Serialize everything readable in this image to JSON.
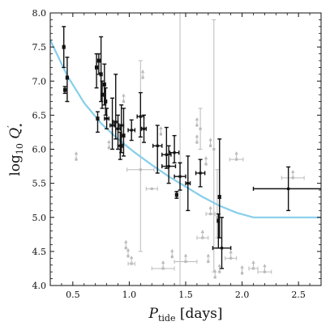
{
  "chart_data": {
    "type": "scatter",
    "xlim": [
      0.3,
      2.7
    ],
    "ylim": [
      4.0,
      8.0
    ],
    "x_ticks": [
      0.5,
      1.0,
      1.5,
      2.0,
      2.5
    ],
    "x_tick_labels": [
      "0.5",
      "1.0",
      "1.5",
      "2.0",
      "2.5"
    ],
    "y_ticks": [
      4.0,
      4.5,
      5.0,
      5.5,
      6.0,
      6.5,
      7.0,
      7.5,
      8.0
    ],
    "y_tick_labels": [
      "4.0",
      "4.5",
      "5.0",
      "5.5",
      "6.0",
      "6.5",
      "7.0",
      "7.5",
      "8.0"
    ],
    "xlabel": {
      "main": "P",
      "sub": "tide",
      "unit": " [days]"
    },
    "ylabel": {
      "prefix": "log",
      "base": "10",
      "var": " Q",
      "prime": "′",
      "star": "⋆"
    },
    "grid": false,
    "colors": {
      "measured": "#111111",
      "limits": "#bbbbbb",
      "model": "#87ceeb"
    },
    "model_curve": {
      "x": [
        0.3,
        0.45,
        0.6,
        0.75,
        0.9,
        1.05,
        1.2,
        1.35,
        1.5,
        1.65,
        1.8,
        1.95,
        2.1,
        2.3,
        2.7
      ],
      "y": [
        7.6,
        7.08,
        6.68,
        6.38,
        6.15,
        5.95,
        5.77,
        5.6,
        5.45,
        5.3,
        5.17,
        5.07,
        5.0,
        5.0,
        5.0
      ]
    },
    "measured": [
      {
        "x": 0.43,
        "y": 6.87,
        "xerr": 0.01,
        "yerr": [
          0.05,
          0.05
        ]
      },
      {
        "x": 0.45,
        "y": 7.05,
        "xerr": 0.01,
        "yerr": [
          0.35,
          0.3
        ]
      },
      {
        "x": 0.42,
        "y": 7.5,
        "xerr": 0.01,
        "yerr": [
          0.3,
          0.3
        ]
      },
      {
        "x": 0.71,
        "y": 7.2,
        "xerr": 0.01,
        "yerr": [
          0.3,
          0.2
        ]
      },
      {
        "x": 0.72,
        "y": 6.45,
        "xerr": 0.01,
        "yerr": [
          0.2,
          0.1
        ]
      },
      {
        "x": 0.73,
        "y": 7.3,
        "xerr": 0.01,
        "yerr": [
          0.2,
          0.1
        ]
      },
      {
        "x": 0.75,
        "y": 7.1,
        "xerr": 0.01,
        "yerr": [
          0.4,
          0.55
        ]
      },
      {
        "x": 0.76,
        "y": 6.8,
        "xerr": 0.01,
        "yerr": [
          0.2,
          0.2
        ]
      },
      {
        "x": 0.78,
        "y": 6.95,
        "xerr": 0.01,
        "yerr": [
          0.3,
          0.3
        ]
      },
      {
        "x": 0.79,
        "y": 6.7,
        "xerr": 0.01,
        "yerr": [
          0.2,
          0.2
        ]
      },
      {
        "x": 0.8,
        "y": 6.45,
        "xerr": 0.02,
        "yerr": [
          0.15,
          0.15
        ]
      },
      {
        "x": 0.85,
        "y": 6.35,
        "xerr": 0.02,
        "yerr": [
          0.35,
          0.4
        ]
      },
      {
        "x": 0.88,
        "y": 6.4,
        "xerr": 0.02,
        "yerr": [
          0.25,
          0.7
        ]
      },
      {
        "x": 0.9,
        "y": 6.3,
        "xerr": 0.02,
        "yerr": [
          0.3,
          0.2
        ]
      },
      {
        "x": 0.93,
        "y": 6.35,
        "xerr": 0.02,
        "yerr": [
          0.4,
          0.3
        ]
      },
      {
        "x": 0.92,
        "y": 6.05,
        "xerr": 0.02,
        "yerr": [
          0.2,
          0.2
        ]
      },
      {
        "x": 0.95,
        "y": 6.2,
        "xerr": 0.01,
        "yerr": [
          0.3,
          0.4
        ]
      },
      {
        "x": 1.02,
        "y": 6.28,
        "xerr": 0.03,
        "yerr": [
          0.15,
          0.15
        ]
      },
      {
        "x": 1.1,
        "y": 6.48,
        "xerr": 0.03,
        "yerr": [
          0.3,
          0.35
        ]
      },
      {
        "x": 1.13,
        "y": 6.3,
        "xerr": 0.02,
        "yerr": [
          0.2,
          0.2
        ]
      },
      {
        "x": 1.25,
        "y": 6.05,
        "xerr": 0.04,
        "yerr": [
          0.4,
          0.3
        ]
      },
      {
        "x": 1.33,
        "y": 5.92,
        "xerr": 0.04,
        "yerr": [
          0.2,
          0.4
        ]
      },
      {
        "x": 1.35,
        "y": 5.75,
        "xerr": 0.06,
        "yerr": [
          0.25,
          0.3
        ]
      },
      {
        "x": 1.4,
        "y": 5.95,
        "xerr": 0.04,
        "yerr": [
          0.15,
          0.25
        ]
      },
      {
        "x": 1.42,
        "y": 5.33,
        "xerr": 0.01,
        "yerr": [
          0.05,
          0.05
        ]
      },
      {
        "x": 1.45,
        "y": 5.6,
        "xerr": 0.05,
        "yerr": [
          0.2,
          0.2
        ]
      },
      {
        "x": 1.52,
        "y": 5.5,
        "xerr": 0.02,
        "yerr": [
          0.4,
          0.4
        ]
      },
      {
        "x": 1.63,
        "y": 5.65,
        "xerr": 0.04,
        "yerr": [
          0.2,
          0.2
        ]
      },
      {
        "x": 1.8,
        "y": 5.3,
        "xerr": 0.01,
        "yerr": [
          0.6,
          0.85
        ]
      },
      {
        "x": 1.82,
        "y": 4.55,
        "xerr": 0.08,
        "yerr": [
          0.3,
          0.45
        ]
      },
      {
        "x": 1.79,
        "y": 4.95,
        "xerr": 0.01,
        "yerr": [
          0.4,
          0.1
        ]
      },
      {
        "x": 2.41,
        "y": 5.42,
        "xerr": 0.31,
        "yerr": [
          0.32,
          0.32
        ]
      }
    ],
    "limits": [
      {
        "x": 0.53,
        "y": 5.85,
        "xerr": 0.0,
        "yerr": [
          0.0,
          0.0
        ],
        "dir": "up"
      },
      {
        "x": 0.82,
        "y": 6.02,
        "xerr": 0.0,
        "yerr": [
          0.0,
          0.0
        ],
        "dir": "up"
      },
      {
        "x": 0.97,
        "y": 4.55,
        "xerr": 0.0,
        "yerr": [
          0.0,
          0.0
        ],
        "dir": "up"
      },
      {
        "x": 0.99,
        "y": 4.43,
        "xerr": 0.0,
        "yerr": [
          0.0,
          0.0
        ],
        "dir": "up"
      },
      {
        "x": 1.02,
        "y": 4.32,
        "xerr": 0.03,
        "yerr": [
          0.0,
          0.0
        ],
        "dir": "up"
      },
      {
        "x": 0.95,
        "y": 6.7,
        "xerr": 0.0,
        "yerr": [
          0.0,
          0.0
        ],
        "dir": "up"
      },
      {
        "x": 1.12,
        "y": 7.05,
        "xerr": 0.0,
        "yerr": [
          0.0,
          0.0
        ],
        "dir": "up"
      },
      {
        "x": 1.1,
        "y": 5.7,
        "xerr": 0.12,
        "yerr": [
          1.2,
          1.6
        ],
        "dir": "none"
      },
      {
        "x": 1.2,
        "y": 5.42,
        "xerr": 0.05,
        "yerr": [
          0.0,
          0.0
        ],
        "dir": "none"
      },
      {
        "x": 1.28,
        "y": 6.22,
        "xerr": 0.0,
        "yerr": [
          0.0,
          0.0
        ],
        "dir": "up"
      },
      {
        "x": 1.3,
        "y": 4.25,
        "xerr": 0.1,
        "yerr": [
          0.0,
          0.0
        ],
        "dir": "up"
      },
      {
        "x": 1.38,
        "y": 4.42,
        "xerr": 0.0,
        "yerr": [
          0.0,
          0.0
        ],
        "dir": "up"
      },
      {
        "x": 1.45,
        "y": 5.8,
        "xerr": 0.0,
        "yerr": [
          1.85,
          2.2
        ],
        "dir": "none"
      },
      {
        "x": 1.5,
        "y": 4.35,
        "xerr": 0.1,
        "yerr": [
          0.0,
          0.0
        ],
        "dir": "up"
      },
      {
        "x": 1.6,
        "y": 6.1,
        "xerr": 0.0,
        "yerr": [
          0.0,
          0.0
        ],
        "dir": "up"
      },
      {
        "x": 1.63,
        "y": 6.3,
        "xerr": 0.0,
        "yerr": [
          0.3,
          0.3
        ],
        "dir": "none"
      },
      {
        "x": 1.65,
        "y": 4.7,
        "xerr": 0.05,
        "yerr": [
          0.0,
          0.0
        ],
        "dir": "up"
      },
      {
        "x": 1.7,
        "y": 4.35,
        "xerr": 0.0,
        "yerr": [
          0.0,
          0.0
        ],
        "dir": "up"
      },
      {
        "x": 1.72,
        "y": 5.05,
        "xerr": 0.04,
        "yerr": [
          0.0,
          0.0
        ],
        "dir": "up"
      },
      {
        "x": 1.75,
        "y": 6.0,
        "xerr": 0.0,
        "yerr": [
          1.8,
          1.9
        ],
        "dir": "none"
      },
      {
        "x": 1.76,
        "y": 4.12,
        "xerr": 0.0,
        "yerr": [
          0.0,
          0.0
        ],
        "dir": "up"
      },
      {
        "x": 1.72,
        "y": 6.05,
        "xerr": 0.0,
        "yerr": [
          0.0,
          0.0
        ],
        "dir": "up"
      },
      {
        "x": 1.78,
        "y": 5.0,
        "xerr": 0.0,
        "yerr": [
          0.3,
          0.7
        ],
        "dir": "none"
      },
      {
        "x": 1.8,
        "y": 4.2,
        "xerr": 0.0,
        "yerr": [
          0.0,
          0.0
        ],
        "dir": "up"
      },
      {
        "x": 1.9,
        "y": 4.4,
        "xerr": 0.05,
        "yerr": [
          0.0,
          0.0
        ],
        "dir": "up"
      },
      {
        "x": 1.95,
        "y": 5.85,
        "xerr": 0.06,
        "yerr": [
          0.0,
          0.0
        ],
        "dir": "up"
      },
      {
        "x": 2.0,
        "y": 4.18,
        "xerr": 0.0,
        "yerr": [
          0.0,
          0.0
        ],
        "dir": "up"
      },
      {
        "x": 2.1,
        "y": 4.25,
        "xerr": 0.04,
        "yerr": [
          0.0,
          0.0
        ],
        "dir": "up"
      },
      {
        "x": 2.2,
        "y": 4.2,
        "xerr": 0.06,
        "yerr": [
          0.0,
          0.0
        ],
        "dir": "up"
      },
      {
        "x": 2.45,
        "y": 5.58,
        "xerr": 0.1,
        "yerr": [
          0.0,
          0.0
        ],
        "dir": "up"
      },
      {
        "x": 1.68,
        "y": 5.78,
        "xerr": 0.0,
        "yerr": [
          0.0,
          0.0
        ],
        "dir": "up"
      },
      {
        "x": 1.6,
        "y": 6.35,
        "xerr": 0.0,
        "yerr": [
          0.0,
          0.0
        ],
        "dir": "up"
      }
    ]
  }
}
